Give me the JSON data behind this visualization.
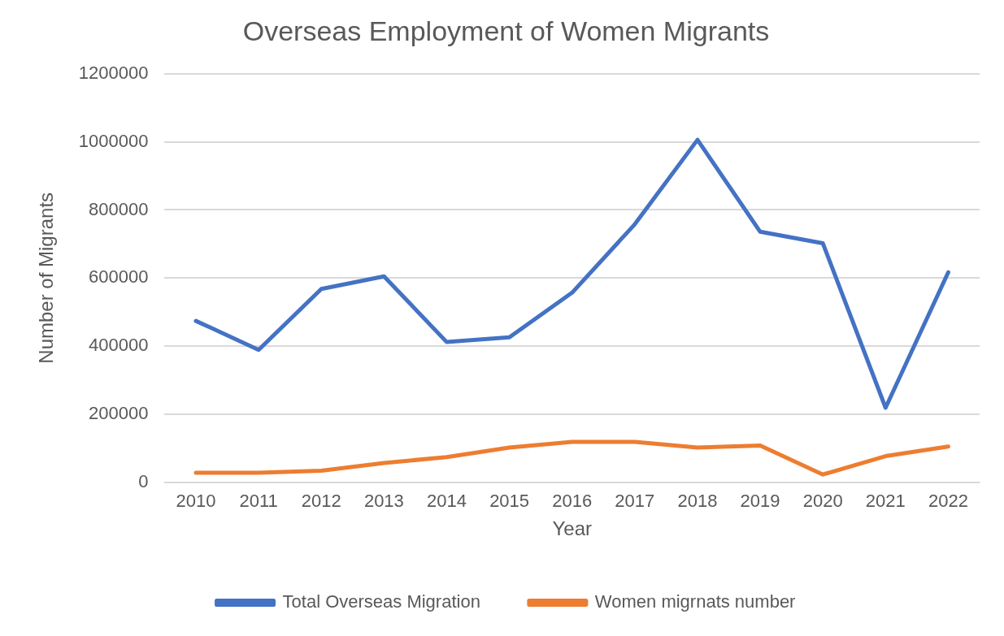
{
  "chart_data": {
    "type": "line",
    "title": "Overseas Employment of Women Migrants",
    "xlabel": "Year",
    "ylabel": "Number of Migrants",
    "categories": [
      "2010",
      "2011",
      "2012",
      "2013",
      "2014",
      "2015",
      "2016",
      "2017",
      "2018",
      "2019",
      "2020",
      "2021",
      "2022"
    ],
    "series": [
      {
        "name": "Total Overseas Migration",
        "color": "#4472c4",
        "values": [
          474000,
          389000,
          568000,
          605000,
          412000,
          426000,
          557000,
          758000,
          1006000,
          736000,
          702000,
          219000,
          617000
        ]
      },
      {
        "name": "Women migrnats number",
        "color": "#ed7d31",
        "values": [
          28000,
          28000,
          34000,
          57000,
          74000,
          102000,
          119000,
          119000,
          102000,
          108000,
          23000,
          77000,
          105000
        ]
      }
    ],
    "ylim": [
      0,
      1200000
    ],
    "yticks": [
      0,
      200000,
      400000,
      600000,
      800000,
      1000000,
      1200000
    ],
    "grid": "y",
    "legend": "bottom",
    "marker": "none",
    "line_style": "solid"
  }
}
